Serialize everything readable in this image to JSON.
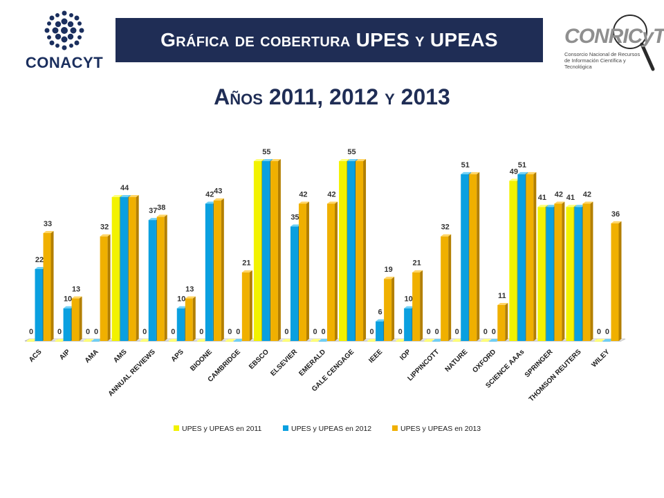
{
  "header": {
    "left_logo_text": "CONACYT",
    "title": "Gráfica de cobertura UPES y UPEAS",
    "right_logo_name": "CONRICyT",
    "right_logo_subtitle": "Consorcio Nacional de Recursos de Información Científica y Tecnológica"
  },
  "subtitle": "Años 2011, 2012 y 2013",
  "colors": {
    "banner": "#1f2d55",
    "series_2011": "#f2f200",
    "series_2012": "#0aa0e0",
    "series_2013": "#f0b000"
  },
  "chart_data": {
    "type": "bar",
    "categories": [
      "ACS",
      "AIP",
      "AMA",
      "AMS",
      "ANNUAL REVIEWS",
      "APS",
      "BIOONE",
      "CAMBRIDGE",
      "EBSCO",
      "ELSEVIER",
      "EMERALD",
      "GALE CENGAGE",
      "IEEE",
      "IOP",
      "LIPPINCOTT",
      "NATURE",
      "OXFORD",
      "SCIENCE AAAs",
      "SPRINGER",
      "THOMSON REUTERS",
      "WILEY"
    ],
    "series": [
      {
        "name": "UPES y UPEAS en 2011",
        "values": [
          0,
          0,
          0,
          44,
          0,
          0,
          0,
          0,
          55,
          0,
          0,
          55,
          0,
          0,
          0,
          0,
          0,
          49,
          41,
          41,
          0
        ]
      },
      {
        "name": "UPES y UPEAS en 2012",
        "values": [
          22,
          10,
          0,
          44,
          37,
          10,
          42,
          0,
          55,
          35,
          0,
          55,
          6,
          10,
          0,
          51,
          0,
          51,
          41,
          41,
          0
        ]
      },
      {
        "name": "UPES y UPEAS en 2013",
        "values": [
          33,
          13,
          32,
          44,
          38,
          13,
          43,
          21,
          55,
          42,
          42,
          55,
          19,
          21,
          32,
          51,
          11,
          51,
          42,
          42,
          36
        ]
      }
    ],
    "data_labels": [
      [
        "0",
        "22",
        "33"
      ],
      [
        "0",
        "10",
        "13"
      ],
      [
        "0",
        "0",
        "32"
      ],
      [
        "",
        "44",
        ""
      ],
      [
        "0",
        "37",
        "38"
      ],
      [
        "0",
        "10",
        "13"
      ],
      [
        "0",
        "42",
        "43"
      ],
      [
        "0",
        "0",
        "21"
      ],
      [
        "",
        "55",
        ""
      ],
      [
        "0",
        "35",
        "42"
      ],
      [
        "0",
        "0",
        "42"
      ],
      [
        "",
        "55",
        ""
      ],
      [
        "0",
        "6",
        "19"
      ],
      [
        "0",
        "10",
        "21"
      ],
      [
        "0",
        "0",
        "32"
      ],
      [
        "0",
        "51",
        ""
      ],
      [
        "0",
        "0",
        "11"
      ],
      [
        "49",
        "51",
        ""
      ],
      [
        "41",
        "",
        "42"
      ],
      [
        "41",
        "",
        "42"
      ],
      [
        "0",
        "0",
        "36"
      ]
    ],
    "ylim": [
      0,
      60
    ],
    "grid": false,
    "legend_position": "bottom",
    "xlabel": "",
    "ylabel": ""
  }
}
